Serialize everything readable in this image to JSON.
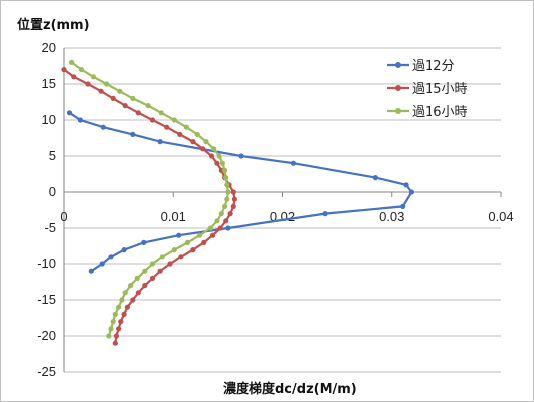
{
  "chart_data": {
    "type": "scatter",
    "ylabel": "位置z(mm)",
    "xlabel": "濃度梯度dc/dz(M/m)",
    "xlim": [
      0,
      0.04
    ],
    "ylim": [
      -25,
      20
    ],
    "x_ticks": [
      "0",
      "0.01",
      "0.02",
      "0.03",
      "0.04"
    ],
    "y_ticks": [
      "20",
      "15",
      "10",
      "5",
      "0",
      "-5",
      "-10",
      "-15",
      "-20",
      "-25"
    ],
    "x_tick_values": [
      0,
      0.01,
      0.02,
      0.03,
      0.04
    ],
    "y_tick_values": [
      20,
      15,
      10,
      5,
      0,
      -5,
      -10,
      -15,
      -20,
      -25
    ],
    "grid": "horizontal",
    "legend_position": "top-right",
    "series": [
      {
        "name": "過12分",
        "color": "#4472c4",
        "points": [
          [
            0.0005,
            11
          ],
          [
            0.0015,
            10
          ],
          [
            0.0036,
            9
          ],
          [
            0.0063,
            8
          ],
          [
            0.0088,
            7
          ],
          [
            0.0162,
            5
          ],
          [
            0.021,
            4
          ],
          [
            0.0285,
            2
          ],
          [
            0.0313,
            1
          ],
          [
            0.0318,
            0
          ],
          [
            0.031,
            -2
          ],
          [
            0.0239,
            -3
          ],
          [
            0.015,
            -5
          ],
          [
            0.0105,
            -6
          ],
          [
            0.0073,
            -7
          ],
          [
            0.0055,
            -8
          ],
          [
            0.0043,
            -9
          ],
          [
            0.0035,
            -10
          ],
          [
            0.0025,
            -11
          ]
        ]
      },
      {
        "name": "過15小時",
        "color": "#c0504d",
        "points": [
          [
            0.0,
            17
          ],
          [
            0.0009,
            16
          ],
          [
            0.0022,
            15
          ],
          [
            0.0034,
            14
          ],
          [
            0.0045,
            13
          ],
          [
            0.0056,
            12
          ],
          [
            0.0068,
            11
          ],
          [
            0.0081,
            10
          ],
          [
            0.0094,
            9
          ],
          [
            0.0106,
            8
          ],
          [
            0.0118,
            7
          ],
          [
            0.0127,
            6
          ],
          [
            0.0135,
            5
          ],
          [
            0.014,
            4
          ],
          [
            0.0144,
            3
          ],
          [
            0.0147,
            2
          ],
          [
            0.0151,
            1
          ],
          [
            0.0155,
            0
          ],
          [
            0.0156,
            -1
          ],
          [
            0.0155,
            -2
          ],
          [
            0.0152,
            -3
          ],
          [
            0.0148,
            -4
          ],
          [
            0.0143,
            -5
          ],
          [
            0.0136,
            -6
          ],
          [
            0.0128,
            -7
          ],
          [
            0.0118,
            -8
          ],
          [
            0.0107,
            -9
          ],
          [
            0.0097,
            -10
          ],
          [
            0.0088,
            -11
          ],
          [
            0.0081,
            -12
          ],
          [
            0.0074,
            -13
          ],
          [
            0.0068,
            -14
          ],
          [
            0.0063,
            -15
          ],
          [
            0.0058,
            -16
          ],
          [
            0.0055,
            -17
          ],
          [
            0.0052,
            -18
          ],
          [
            0.005,
            -19
          ],
          [
            0.0048,
            -20
          ],
          [
            0.0047,
            -21
          ]
        ]
      },
      {
        "name": "過16小時",
        "color": "#9bbb59",
        "points": [
          [
            0.0007,
            18
          ],
          [
            0.0016,
            17
          ],
          [
            0.0027,
            16
          ],
          [
            0.0039,
            15
          ],
          [
            0.0051,
            14
          ],
          [
            0.0063,
            13
          ],
          [
            0.0077,
            12
          ],
          [
            0.0089,
            11
          ],
          [
            0.0101,
            10
          ],
          [
            0.0112,
            9
          ],
          [
            0.0122,
            8
          ],
          [
            0.013,
            7
          ],
          [
            0.0137,
            6
          ],
          [
            0.0142,
            5
          ],
          [
            0.0145,
            4
          ],
          [
            0.0147,
            3
          ],
          [
            0.0148,
            2
          ],
          [
            0.0149,
            1
          ],
          [
            0.015,
            0
          ],
          [
            0.0149,
            -1
          ],
          [
            0.0147,
            -2
          ],
          [
            0.0144,
            -3
          ],
          [
            0.014,
            -4
          ],
          [
            0.0134,
            -5
          ],
          [
            0.0124,
            -6
          ],
          [
            0.0113,
            -7
          ],
          [
            0.0101,
            -8
          ],
          [
            0.009,
            -9
          ],
          [
            0.0081,
            -10
          ],
          [
            0.0074,
            -11
          ],
          [
            0.0067,
            -12
          ],
          [
            0.0061,
            -13
          ],
          [
            0.0056,
            -14
          ],
          [
            0.0053,
            -15
          ],
          [
            0.005,
            -16
          ],
          [
            0.0047,
            -17
          ],
          [
            0.0045,
            -18
          ],
          [
            0.0043,
            -19
          ],
          [
            0.0041,
            -20
          ]
        ]
      }
    ]
  }
}
